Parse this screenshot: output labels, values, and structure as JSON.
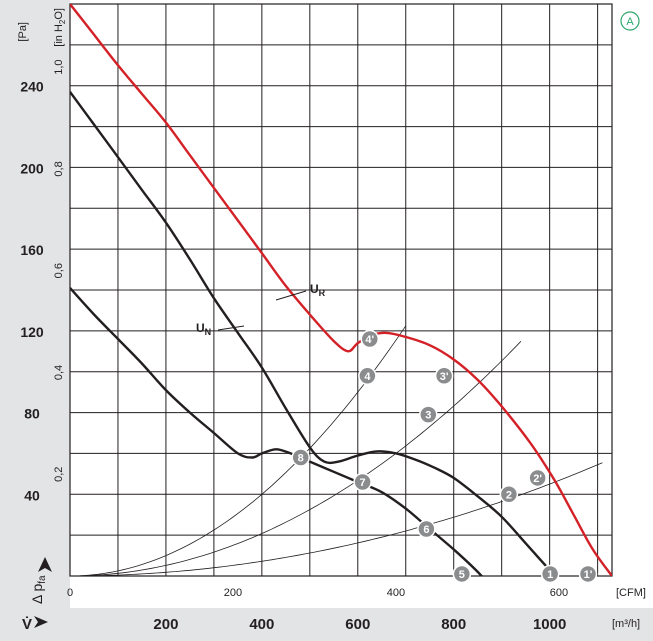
{
  "chart_data": {
    "type": "line",
    "badge": "A",
    "pa_unit": "[Pa]",
    "inh2o_unit_main": "[in H",
    "inh2o_unit_sub": "2",
    "inh2o_unit_end": "O]",
    "cfm_unit": "[CFM]",
    "m3h_unit": "[m³/h]",
    "y_axis_label": "Δ p",
    "y_axis_label_sub": "fa",
    "x_axis_label": "V̇",
    "pa_ticks": [
      "40",
      "80",
      "120",
      "160",
      "200",
      "240"
    ],
    "inh2o_ticks": [
      "0,2",
      "0,4",
      "0,6",
      "0,8",
      "1,0"
    ],
    "cfm_ticks": [
      "0",
      "200",
      "400",
      "600"
    ],
    "m3h_ticks": [
      "200",
      "400",
      "600",
      "800",
      "1000"
    ],
    "series": [
      {
        "name": "U",
        "name_sub": "R",
        "color": "#d42127",
        "x_m3h": [
          0,
          50,
          100,
          150,
          200,
          250,
          300,
          350,
          400,
          450,
          500,
          550,
          580,
          600,
          630,
          660,
          700,
          750,
          800,
          850,
          900,
          960,
          1010,
          1050,
          1090,
          1130
        ],
        "pa": [
          280,
          265,
          250,
          236,
          222,
          206,
          190,
          174,
          158,
          142,
          128,
          115,
          110,
          114,
          118,
          119,
          117,
          113,
          106,
          96,
          83,
          65,
          47,
          30,
          13,
          0
        ]
      },
      {
        "name": "U",
        "name_sub": "N",
        "color": "#231f20",
        "x_m3h": [
          0,
          50,
          100,
          150,
          200,
          250,
          300,
          350,
          400,
          450,
          500,
          530,
          560,
          600,
          640,
          680,
          720,
          760,
          800,
          850,
          900,
          950,
          1000,
          1040,
          1080
        ],
        "pa": [
          237,
          221,
          205,
          189,
          173,
          155,
          136,
          119,
          102,
          82,
          63,
          56,
          56,
          59,
          61,
          60,
          57,
          53,
          48,
          39,
          29,
          16,
          3,
          -6,
          -14
        ]
      },
      {
        "name": "",
        "name_sub": "",
        "color": "#231f20",
        "x_m3h": [
          0,
          50,
          100,
          150,
          200,
          250,
          300,
          350,
          380,
          400,
          430,
          460,
          500,
          550,
          600,
          650,
          700,
          750,
          800,
          850,
          900,
          950,
          1000
        ],
        "pa": [
          141,
          128,
          116,
          104,
          91,
          80,
          70,
          60,
          58,
          60,
          62,
          60,
          56,
          51,
          46,
          41,
          33,
          23,
          13,
          2,
          -11,
          -25,
          -40
        ]
      }
    ],
    "operating_points": [
      {
        "label": "1'",
        "x_m3h": 1080,
        "pa": 1
      },
      {
        "label": "2'",
        "x_m3h": 975,
        "pa": 48
      },
      {
        "label": "3'",
        "x_m3h": 780,
        "pa": 98
      },
      {
        "label": "4'",
        "x_m3h": 625,
        "pa": 116
      },
      {
        "label": "1",
        "x_m3h": 1001,
        "pa": 1
      },
      {
        "label": "2",
        "x_m3h": 915,
        "pa": 40
      },
      {
        "label": "3",
        "x_m3h": 747,
        "pa": 79
      },
      {
        "label": "4",
        "x_m3h": 620,
        "pa": 98
      },
      {
        "label": "5",
        "x_m3h": 817,
        "pa": 1
      },
      {
        "label": "6",
        "x_m3h": 743,
        "pa": 23
      },
      {
        "label": "7",
        "x_m3h": 610,
        "pa": 46
      },
      {
        "label": "8",
        "x_m3h": 481,
        "pa": 58
      }
    ],
    "system_curves": [
      {
        "k": 0.00025,
        "x_max": 700
      },
      {
        "k": 0.00013,
        "x_max": 940
      },
      {
        "k": 4.5e-05,
        "x_max": 1115
      }
    ],
    "x_range_m3h": [
      0,
      1130
    ],
    "y_range_pa": [
      0,
      280
    ],
    "grid": true
  }
}
